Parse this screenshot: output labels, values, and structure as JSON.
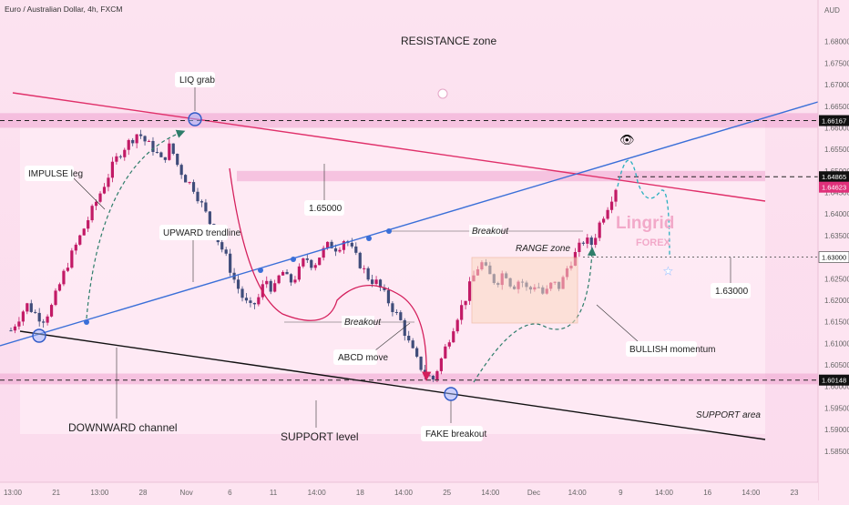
{
  "header": {
    "title": "Euro / Australian Dollar, 4h, FXCM",
    "currency": "AUD"
  },
  "colors": {
    "background": "#fde4f1",
    "zone_band": "#efa3d0",
    "up_candle": "#c21a66",
    "down_candle": "#3f4c7a",
    "channel_top": "#e0306a",
    "trendline": "#3a6fd8",
    "channel_bottom": "#111111",
    "price_tag": "#e0307a",
    "arrow_green": "#2e7d6a"
  },
  "labels": {
    "resistance_zone": "RESISTANCE zone",
    "liq_grab": "LIQ grab",
    "impulse_leg": "IMPULSE leg",
    "upward_trendline": "UPWARD trendline",
    "level_165": "1.65000",
    "breakout_1": "Breakout",
    "breakout_2": "Breakout",
    "range_zone": "RANGE zone",
    "abcd_move": "ABCD move",
    "bullish_momentum": "BULLISH momentum",
    "level_163": "1.63000",
    "support_area": "SUPPORT area",
    "downward_channel": "DOWNWARD channel",
    "support_level": "SUPPORT level",
    "fake_breakout": "FAKE breakout",
    "logo_name": "Lingrid",
    "logo_sub": "FOREX"
  },
  "price_tags": {
    "resistance_level": "1.66167",
    "upper_level": "1.64865",
    "last_price": "1.64623",
    "mid_level": "1.63000",
    "support_level": "1.60148"
  },
  "chart_data": {
    "type": "candlestick",
    "ylim": [
      1.582,
      1.685
    ],
    "y_ticks": [
      "1.58500",
      "1.59000",
      "1.59500",
      "1.60000",
      "1.60500",
      "1.61000",
      "1.61500",
      "1.62000",
      "1.62500",
      "1.63000",
      "1.63500",
      "1.64000",
      "1.64500",
      "1.65000",
      "1.65500",
      "1.66000",
      "1.66500",
      "1.67000",
      "1.67500",
      "1.68000"
    ],
    "x_ticks": [
      "13:00",
      "21",
      "13:00",
      "28",
      "Nov",
      "6",
      "11",
      "14:00",
      "18",
      "14:00",
      "25",
      "14:00",
      "Dec",
      "14:00",
      "9",
      "14:00",
      "16",
      "14:00",
      "23"
    ],
    "horizontal_levels": [
      1.66167,
      1.64865,
      1.63,
      1.60148
    ],
    "resistance_band": [
      1.66,
      1.6634
    ],
    "upper_band": [
      1.6476,
      1.65
    ],
    "support_band": [
      1.6005,
      1.603
    ],
    "price_path": [
      1.613,
      1.616,
      1.619,
      1.617,
      1.6155,
      1.618,
      1.623,
      1.628,
      1.632,
      1.636,
      1.64,
      1.644,
      1.648,
      1.652,
      1.655,
      1.657,
      1.659,
      1.6565,
      1.655,
      1.652,
      1.656,
      1.651,
      1.648,
      1.646,
      1.642,
      1.638,
      1.634,
      1.63,
      1.625,
      1.621,
      1.618,
      1.62,
      1.625,
      1.622,
      1.627,
      1.624,
      1.626,
      1.63,
      1.628,
      1.631,
      1.633,
      1.632,
      1.6345,
      1.631,
      1.628,
      1.625,
      1.624,
      1.621,
      1.618,
      1.615,
      1.61,
      1.606,
      1.603,
      1.6015,
      1.606,
      1.611,
      1.616,
      1.62,
      1.625,
      1.629,
      1.626,
      1.624,
      1.627,
      1.623,
      1.625,
      1.622,
      1.624,
      1.621,
      1.624,
      1.623,
      1.628,
      1.631,
      1.634,
      1.633,
      1.638,
      1.642,
      1.6462
    ]
  }
}
